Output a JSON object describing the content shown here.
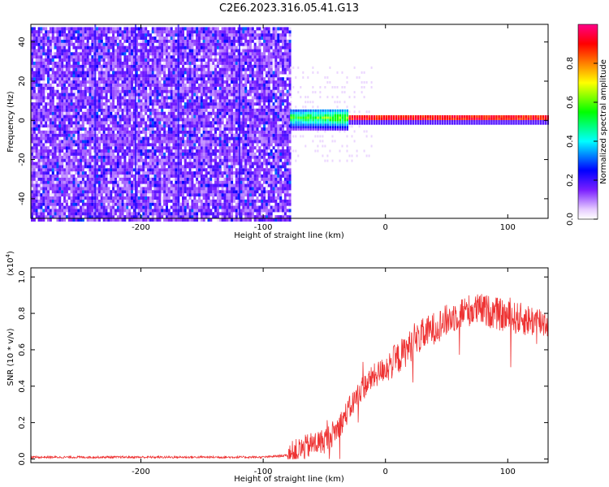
{
  "title": "C2E6.2023.316.05.41.G13",
  "chart_data": [
    {
      "type": "heatmap",
      "xlabel": "Height of straight line (km)",
      "ylabel": "Frequency (Hz)",
      "xlim": [
        -290,
        133
      ],
      "ylim": [
        -50,
        49
      ],
      "xticks": [
        -200,
        -100,
        0,
        100
      ],
      "yticks": [
        -40,
        -20,
        0,
        20,
        40
      ],
      "colorbar": {
        "label": "Normalized spectral amplitude",
        "range": [
          0.0,
          1.0
        ],
        "ticks": [
          0.0,
          0.2,
          0.4,
          0.6,
          0.8
        ]
      },
      "regions": [
        {
          "x_from": -290,
          "x_to": -78,
          "freq_from": -50,
          "freq_to": 49,
          "amplitude": 0.2,
          "pattern": "broadband noise"
        },
        {
          "x_from": -78,
          "x_to": -30,
          "freq_center": 1,
          "half_width": 5,
          "amplitude": 0.45,
          "pattern": "emerging carrier"
        },
        {
          "x_from": -30,
          "x_to": 133,
          "freq_center": 1,
          "half_width": 2,
          "amplitude": 0.9,
          "pattern": "narrow carrier"
        }
      ]
    },
    {
      "type": "line",
      "xlabel": "Height of straight line (km)",
      "ylabel": "SNR (10 * v/v)",
      "y_multiplier": "(x10",
      "y_multiplier_exp": "4",
      "y_multiplier_close": ")",
      "xlim": [
        -290,
        133
      ],
      "ylim": [
        -0.02,
        1.05
      ],
      "xticks": [
        -200,
        -100,
        0,
        100
      ],
      "yticks": [
        0.0,
        0.2,
        0.4,
        0.6,
        0.8,
        1.0
      ],
      "color": "#ee3333",
      "series": [
        {
          "x": [
            -290,
            -250,
            -200,
            -150,
            -100,
            -80,
            -70,
            -60,
            -50,
            -40,
            -30,
            -20,
            -10,
            0,
            10,
            20,
            30,
            40,
            50,
            60,
            70,
            80,
            90,
            100,
            110,
            120,
            133
          ],
          "y": [
            0.01,
            0.01,
            0.01,
            0.01,
            0.01,
            0.02,
            0.05,
            0.08,
            0.1,
            0.16,
            0.27,
            0.38,
            0.45,
            0.5,
            0.55,
            0.62,
            0.68,
            0.72,
            0.76,
            0.8,
            0.82,
            0.82,
            0.8,
            0.78,
            0.77,
            0.76,
            0.75
          ]
        }
      ]
    }
  ]
}
